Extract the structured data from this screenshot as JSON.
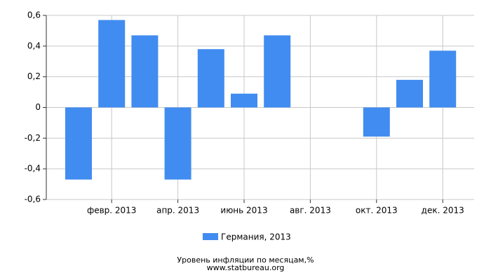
{
  "chart_data": {
    "type": "bar",
    "categories": [
      null,
      "февр. 2013",
      null,
      "апр. 2013",
      null,
      "июнь 2013",
      null,
      "авг. 2013",
      null,
      "окт. 2013",
      null,
      "дек. 2013"
    ],
    "series": [
      {
        "name": "Германия, 2013",
        "color": "#418cf0",
        "values": [
          -0.47,
          0.57,
          0.47,
          -0.47,
          0.38,
          0.09,
          0.47,
          0,
          0,
          -0.19,
          0.18,
          0.37
        ]
      }
    ],
    "ylim": [
      -0.6,
      0.6
    ],
    "yticks": [
      {
        "value": -0.6,
        "label": "-0,6"
      },
      {
        "value": -0.4,
        "label": "-0,4"
      },
      {
        "value": -0.2,
        "label": "-0,2"
      },
      0,
      {
        "value": 0.2,
        "label": "0,2"
      },
      {
        "value": 0.4,
        "label": "0,4"
      },
      {
        "value": 0.6,
        "label": "0,6"
      }
    ],
    "grid": true,
    "caption": "Уровень инфляции по месяцам,%",
    "source": "www.statbureau.org"
  }
}
